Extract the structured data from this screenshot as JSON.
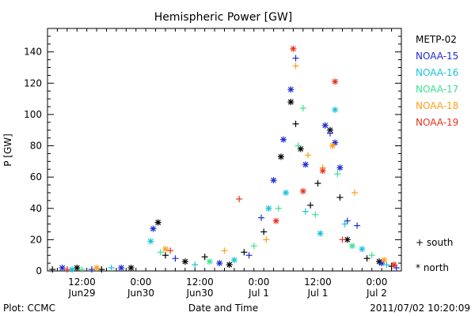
{
  "chart_data": {
    "type": "scatter",
    "title": "Hemispheric Power [GW]",
    "ylabel": "P [GW]",
    "xlabel": "Date and Time",
    "ylim": [
      0,
      155
    ],
    "yticks": [
      0,
      20,
      40,
      60,
      80,
      100,
      120,
      140
    ],
    "xlim": [
      "2011-06-29T05:00",
      "2011-07-02T05:00"
    ],
    "xticks": [
      {
        "time": "2011-06-29T12:00",
        "line1": "12:00",
        "line2": "Jun29"
      },
      {
        "time": "2011-06-30T00:00",
        "line1": "0:00",
        "line2": "Jun30"
      },
      {
        "time": "2011-06-30T12:00",
        "line1": "12:00",
        "line2": "Jun30"
      },
      {
        "time": "2011-07-01T00:00",
        "line1": "0:00",
        "line2": "Jul 1"
      },
      {
        "time": "2011-07-01T12:00",
        "line1": "12:00",
        "line2": "Jul 1"
      },
      {
        "time": "2011-07-02T00:00",
        "line1": "0:00",
        "line2": "Jul 2"
      }
    ],
    "footer_left": "Plot: CCMC",
    "footer_right": "2011/07/02 10:20:09",
    "marker_legend": {
      "south": "+ south",
      "north": "* north"
    },
    "series": [
      {
        "name": "METP-02",
        "color": "#000000",
        "points": [
          {
            "t": "2011-06-29T06:00",
            "v": 1,
            "m": "+"
          },
          {
            "t": "2011-06-29T11:00",
            "v": 2,
            "m": "*"
          },
          {
            "t": "2011-06-29T16:00",
            "v": 1,
            "m": "+"
          },
          {
            "t": "2011-06-29T22:00",
            "v": 2,
            "m": "*"
          },
          {
            "t": "2011-06-30T03:30",
            "v": 31,
            "m": "*"
          },
          {
            "t": "2011-06-30T05:00",
            "v": 10,
            "m": "+"
          },
          {
            "t": "2011-06-30T09:00",
            "v": 6,
            "m": "*"
          },
          {
            "t": "2011-06-30T13:00",
            "v": 9,
            "m": "+"
          },
          {
            "t": "2011-06-30T18:00",
            "v": 4,
            "m": "*"
          },
          {
            "t": "2011-06-30T21:00",
            "v": 12,
            "m": "+"
          },
          {
            "t": "2011-07-01T01:00",
            "v": 25,
            "m": "+"
          },
          {
            "t": "2011-07-01T04:30",
            "v": 73,
            "m": "*"
          },
          {
            "t": "2011-07-01T06:30",
            "v": 108,
            "m": "*"
          },
          {
            "t": "2011-07-01T07:30",
            "v": 94,
            "m": "+"
          },
          {
            "t": "2011-07-01T08:30",
            "v": 78,
            "m": "*"
          },
          {
            "t": "2011-07-01T10:30",
            "v": 42,
            "m": "+"
          },
          {
            "t": "2011-07-01T12:00",
            "v": 56,
            "m": "+"
          },
          {
            "t": "2011-07-01T14:30",
            "v": 90,
            "m": "*"
          },
          {
            "t": "2011-07-01T16:30",
            "v": 47,
            "m": "+"
          },
          {
            "t": "2011-07-01T18:00",
            "v": 20,
            "m": "*"
          },
          {
            "t": "2011-07-01T22:00",
            "v": 8,
            "m": "+"
          },
          {
            "t": "2011-07-02T00:30",
            "v": 6,
            "m": "*"
          },
          {
            "t": "2011-07-02T03:00",
            "v": 3,
            "m": "+"
          }
        ]
      },
      {
        "name": "NOAA-15",
        "color": "#1c2ccf",
        "points": [
          {
            "t": "2011-06-29T08:00",
            "v": 2,
            "m": "*"
          },
          {
            "t": "2011-06-29T14:00",
            "v": 1,
            "m": "+"
          },
          {
            "t": "2011-06-29T20:00",
            "v": 2,
            "m": "*"
          },
          {
            "t": "2011-06-30T02:30",
            "v": 27,
            "m": "*"
          },
          {
            "t": "2011-06-30T07:00",
            "v": 8,
            "m": "+"
          },
          {
            "t": "2011-06-30T16:00",
            "v": 5,
            "m": "*"
          },
          {
            "t": "2011-06-30T22:00",
            "v": 10,
            "m": "+"
          },
          {
            "t": "2011-07-01T00:30",
            "v": 34,
            "m": "+"
          },
          {
            "t": "2011-07-01T03:00",
            "v": 58,
            "m": "*"
          },
          {
            "t": "2011-07-01T05:00",
            "v": 84,
            "m": "*"
          },
          {
            "t": "2011-07-01T06:30",
            "v": 116,
            "m": "*"
          },
          {
            "t": "2011-07-01T07:30",
            "v": 136,
            "m": "+"
          },
          {
            "t": "2011-07-01T09:30",
            "v": 68,
            "m": "*"
          },
          {
            "t": "2011-07-01T13:30",
            "v": 93,
            "m": "*"
          },
          {
            "t": "2011-07-01T14:30",
            "v": 88,
            "m": "+"
          },
          {
            "t": "2011-07-01T15:30",
            "v": 82,
            "m": "*"
          },
          {
            "t": "2011-07-01T16:30",
            "v": 66,
            "m": "*"
          },
          {
            "t": "2011-07-01T18:00",
            "v": 32,
            "m": "+"
          },
          {
            "t": "2011-07-01T20:00",
            "v": 29,
            "m": "+"
          },
          {
            "t": "2011-07-02T01:00",
            "v": 5,
            "m": "*"
          },
          {
            "t": "2011-07-02T04:00",
            "v": 2,
            "m": "+"
          }
        ]
      },
      {
        "name": "NOAA-16",
        "color": "#19c3d8",
        "points": [
          {
            "t": "2011-06-29T10:00",
            "v": 1,
            "m": "*"
          },
          {
            "t": "2011-06-29T18:00",
            "v": 2,
            "m": "+"
          },
          {
            "t": "2011-06-30T02:00",
            "v": 19,
            "m": "*"
          },
          {
            "t": "2011-06-30T11:00",
            "v": 4,
            "m": "+"
          },
          {
            "t": "2011-06-30T19:00",
            "v": 7,
            "m": "*"
          },
          {
            "t": "2011-07-01T02:00",
            "v": 40,
            "m": "*"
          },
          {
            "t": "2011-07-01T05:30",
            "v": 50,
            "m": "*"
          },
          {
            "t": "2011-07-01T09:30",
            "v": 38,
            "m": "+"
          },
          {
            "t": "2011-07-01T12:30",
            "v": 24,
            "m": "*"
          },
          {
            "t": "2011-07-01T15:30",
            "v": 103,
            "m": "*"
          },
          {
            "t": "2011-07-01T17:30",
            "v": 30,
            "m": "+"
          },
          {
            "t": "2011-07-01T21:00",
            "v": 14,
            "m": "*"
          },
          {
            "t": "2011-07-02T02:00",
            "v": 4,
            "m": "+"
          }
        ]
      },
      {
        "name": "NOAA-17",
        "color": "#3ae28f",
        "points": [
          {
            "t": "2011-06-29T12:00",
            "v": 1,
            "m": "+"
          },
          {
            "t": "2011-06-30T04:00",
            "v": 12,
            "m": "+"
          },
          {
            "t": "2011-06-30T14:00",
            "v": 6,
            "m": "*"
          },
          {
            "t": "2011-06-30T23:00",
            "v": 16,
            "m": "+"
          },
          {
            "t": "2011-07-01T04:00",
            "v": 40,
            "m": "+"
          },
          {
            "t": "2011-07-01T08:00",
            "v": 80,
            "m": "+"
          },
          {
            "t": "2011-07-01T09:00",
            "v": 104,
            "m": "+"
          },
          {
            "t": "2011-07-01T11:30",
            "v": 36,
            "m": "+"
          },
          {
            "t": "2011-07-01T16:00",
            "v": 62,
            "m": "+"
          },
          {
            "t": "2011-07-01T19:00",
            "v": 16,
            "m": "*"
          },
          {
            "t": "2011-07-01T23:00",
            "v": 10,
            "m": "+"
          }
        ]
      },
      {
        "name": "NOAA-18",
        "color": "#ff9f1a",
        "points": [
          {
            "t": "2011-06-29T15:00",
            "v": 2,
            "m": "*"
          },
          {
            "t": "2011-06-30T05:00",
            "v": 14,
            "m": "*"
          },
          {
            "t": "2011-06-30T17:00",
            "v": 13,
            "m": "+"
          },
          {
            "t": "2011-07-01T01:30",
            "v": 20,
            "m": "+"
          },
          {
            "t": "2011-07-01T07:30",
            "v": 131,
            "m": "+"
          },
          {
            "t": "2011-07-01T10:00",
            "v": 74,
            "m": "+"
          },
          {
            "t": "2011-07-01T13:00",
            "v": 66,
            "m": "+"
          },
          {
            "t": "2011-07-01T15:00",
            "v": 80,
            "m": "*"
          },
          {
            "t": "2011-07-01T19:30",
            "v": 50,
            "m": "+"
          },
          {
            "t": "2011-07-02T01:30",
            "v": 7,
            "m": "*"
          }
        ]
      },
      {
        "name": "NOAA-19",
        "color": "#e8321a",
        "points": [
          {
            "t": "2011-06-29T09:00",
            "v": 1,
            "m": "+"
          },
          {
            "t": "2011-06-30T06:00",
            "v": 13,
            "m": "+"
          },
          {
            "t": "2011-06-30T20:00",
            "v": 46,
            "m": "+"
          },
          {
            "t": "2011-07-01T03:30",
            "v": 32,
            "m": "*"
          },
          {
            "t": "2011-07-01T07:00",
            "v": 142,
            "m": "*"
          },
          {
            "t": "2011-07-01T09:00",
            "v": 51,
            "m": "*"
          },
          {
            "t": "2011-07-01T13:00",
            "v": 64,
            "m": "*"
          },
          {
            "t": "2011-07-01T15:30",
            "v": 121,
            "m": "*"
          },
          {
            "t": "2011-07-01T17:00",
            "v": 20,
            "m": "+"
          },
          {
            "t": "2011-07-02T03:30",
            "v": 4,
            "m": "*"
          }
        ]
      }
    ]
  }
}
